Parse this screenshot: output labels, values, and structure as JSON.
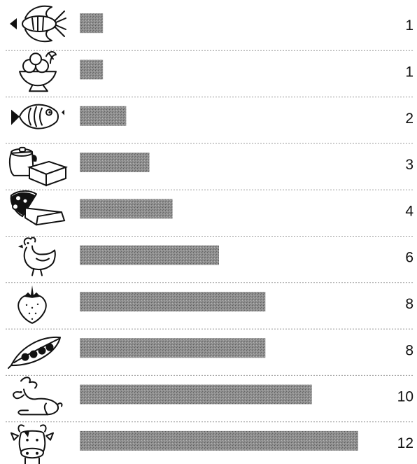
{
  "chart_data": {
    "type": "bar",
    "orientation": "horizontal",
    "categories": [
      "lobster-icon",
      "ice-cream-icon",
      "fish-icon",
      "butter-icon",
      "cheese-icon",
      "chicken-icon",
      "strawberry-icon",
      "peas-icon",
      "rabbit-icon",
      "cow-icon"
    ],
    "values": [
      1,
      1,
      2,
      3,
      4,
      6,
      8,
      8,
      10,
      12
    ],
    "value_labels": [
      "1",
      "1",
      "2",
      "3",
      "4",
      "6",
      "8",
      "8",
      "10",
      "12"
    ],
    "title": "",
    "xlabel": "",
    "ylabel": "",
    "xlim": [
      0,
      12
    ],
    "grid": false,
    "legend": "none",
    "bar_color": "#8a8a8a",
    "divider_color": "#9a9a9a"
  }
}
